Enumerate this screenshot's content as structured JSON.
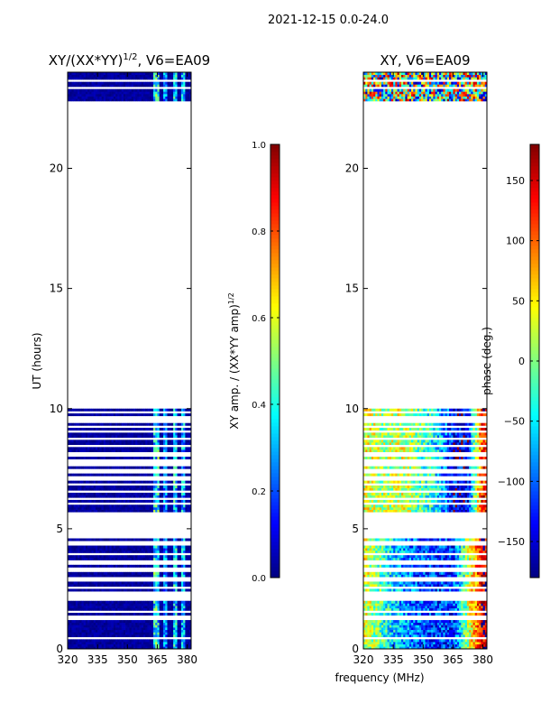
{
  "figure": {
    "suptitle": "2021-12-15 0.0-24.0",
    "xlabel": "frequency (MHz)"
  },
  "chart_data": [
    {
      "type": "heatmap",
      "title": "XY/(XX*YY)",
      "title_sup": "1/2",
      "title_suffix": ", V6=EA09",
      "xlabel": "",
      "ylabel": "UT (hours)",
      "xlim": [
        320,
        382
      ],
      "ylim": [
        0,
        24
      ],
      "xticks": [
        320,
        335,
        350,
        365,
        380
      ],
      "yticks": [
        0,
        5,
        10,
        15,
        20
      ],
      "colorbar": {
        "label": "XY amp. / (XX*YY amp)",
        "label_sup": "1/2",
        "range": [
          0.0,
          1.0
        ],
        "ticks": [
          "0.0",
          "0.2",
          "0.4",
          "0.6",
          "0.8",
          "1.0"
        ],
        "tick_values": [
          0.0,
          0.2,
          0.4,
          0.6,
          0.8,
          1.0
        ]
      },
      "data_time_ranges_hours": [
        [
          0.0,
          10.0
        ],
        [
          22.8,
          24.0
        ]
      ],
      "gap_hours": [
        0.45,
        1.3,
        1.55,
        2.1,
        2.3,
        2.55,
        2.9,
        3.3,
        3.6,
        3.95,
        4.4,
        4.7,
        5.05,
        5.2,
        5.3,
        5.45,
        5.6,
        6.05,
        6.25,
        6.55,
        6.85,
        7.1,
        7.4,
        7.7,
        7.85,
        8.1,
        8.45,
        8.75,
        9.05,
        9.25,
        9.5,
        9.65,
        9.85,
        23.35,
        23.65
      ],
      "gap_range_hours": [
        [
          4.85,
          5.55
        ]
      ],
      "typical_value": 0.0,
      "bright_band_mhz": [
        [
          363,
          366,
          0.45
        ],
        [
          368,
          370,
          0.3
        ],
        [
          373,
          375,
          0.4
        ],
        [
          377,
          379,
          0.35
        ]
      ]
    },
    {
      "type": "heatmap",
      "title": "XY, V6=EA09",
      "xlabel": "",
      "ylabel": "",
      "xlim": [
        320,
        382
      ],
      "ylim": [
        0,
        24
      ],
      "xticks": [
        320,
        335,
        350,
        365,
        380
      ],
      "yticks": [
        0,
        5,
        10,
        15,
        20
      ],
      "colorbar": {
        "label": "phase (deg.)",
        "range": [
          -180,
          180
        ],
        "ticks": [
          "−150",
          "−100",
          "−50",
          "0",
          "50",
          "100",
          "150"
        ],
        "tick_values": [
          -150,
          -100,
          -50,
          0,
          50,
          100,
          150
        ]
      },
      "data_time_ranges_hours": [
        [
          0.0,
          10.0
        ],
        [
          22.8,
          24.0
        ]
      ],
      "gap_hours": [
        0.45,
        1.3,
        1.55,
        2.1,
        2.3,
        2.55,
        2.9,
        3.3,
        3.6,
        3.95,
        4.4,
        4.7,
        5.05,
        5.2,
        5.3,
        5.45,
        5.6,
        6.05,
        6.25,
        6.55,
        6.85,
        7.1,
        7.4,
        7.7,
        7.85,
        8.1,
        8.45,
        8.75,
        9.05,
        9.25,
        9.5,
        9.65,
        9.85,
        23.35,
        23.65
      ],
      "gap_range_hours": [
        [
          4.85,
          5.55
        ]
      ],
      "phase_profile_deg": {
        "note": "phase vs frequency in upper segment (5.5-10 h)",
        "freq_mhz": [
          320,
          330,
          340,
          350,
          358,
          365,
          372,
          380
        ],
        "phase_deg": [
          40,
          10,
          30,
          -20,
          -60,
          -130,
          -150,
          130
        ]
      },
      "phase_profile_lower_deg": {
        "freq_mhz": [
          320,
          335,
          350,
          365,
          380
        ],
        "phase_deg": [
          40,
          -60,
          -110,
          -120,
          150
        ]
      }
    }
  ]
}
